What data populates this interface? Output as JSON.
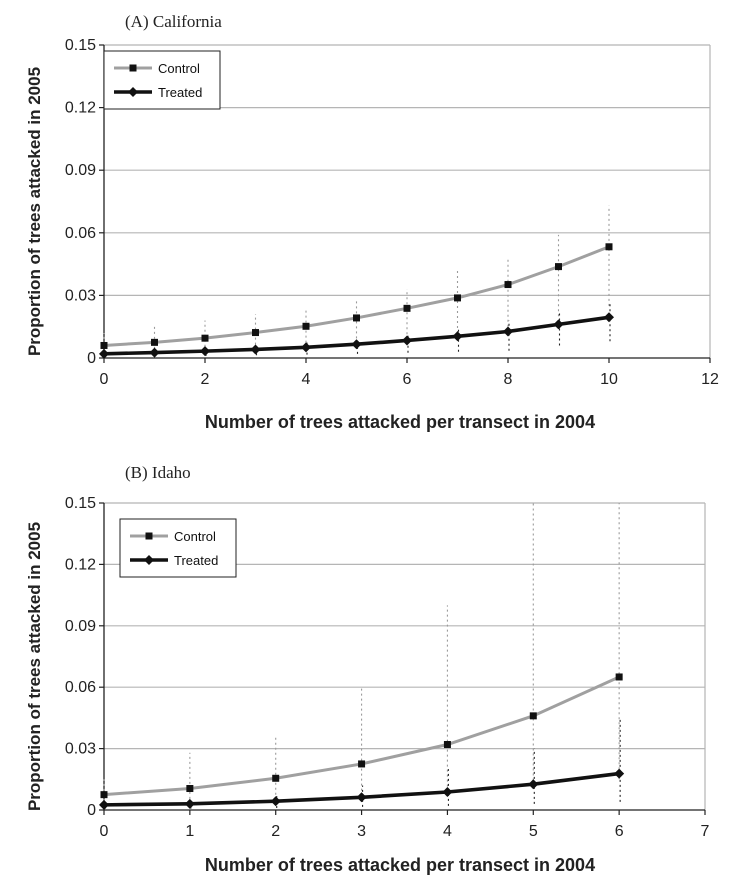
{
  "chart_data": [
    {
      "type": "line",
      "title": "(A) California",
      "xlabel": "Number of trees attacked per transect in 2004",
      "ylabel": "Proportion of  trees attacked in 2005",
      "xlim": [
        0,
        12
      ],
      "ylim": [
        0,
        0.15
      ],
      "xticks": [
        0,
        2,
        4,
        6,
        8,
        10,
        12
      ],
      "xtick_labels": [
        "0",
        "2",
        "4",
        "6",
        "8",
        "10",
        "12"
      ],
      "yticks": [
        0,
        0.03,
        0.06,
        0.09,
        0.12,
        0.15
      ],
      "ytick_labels": [
        "0",
        "0.03",
        "0.06",
        "0.09",
        "0.12",
        "0.15"
      ],
      "grid": "horizontal",
      "legend": "top-left",
      "x": [
        0,
        1,
        2,
        3,
        4,
        5,
        6,
        7,
        8,
        9,
        10
      ],
      "series": [
        {
          "name": "Control",
          "color": "#a0a0a0",
          "marker": "square",
          "values": [
            0.006,
            0.0075,
            0.0095,
            0.0122,
            0.0152,
            0.0192,
            0.0238,
            0.0288,
            0.0352,
            0.0438,
            0.0533
          ],
          "error_low": [
            0.002,
            0.002,
            0.003,
            0.004,
            0.005,
            0.007,
            0.009,
            0.012,
            0.015,
            0.02,
            0.025
          ],
          "error_high": [
            0.012,
            0.016,
            0.018,
            0.021,
            0.024,
            0.028,
            0.033,
            0.042,
            0.048,
            0.059,
            0.073
          ]
        },
        {
          "name": "Treated",
          "color": "#111111",
          "marker": "diamond",
          "values": [
            0.002,
            0.0026,
            0.0033,
            0.0041,
            0.0051,
            0.0066,
            0.0084,
            0.0104,
            0.0127,
            0.0161,
            0.0195
          ],
          "error_low": [
            0.0005,
            0.0007,
            0.001,
            0.0013,
            0.0016,
            0.002,
            0.0025,
            0.003,
            0.0035,
            0.006,
            0.008
          ],
          "error_high": [
            0.003,
            0.004,
            0.005,
            0.006,
            0.0075,
            0.009,
            0.012,
            0.015,
            0.018,
            0.022,
            0.026
          ]
        }
      ]
    },
    {
      "type": "line",
      "title": "(B) Idaho",
      "xlabel": "Number of trees attacked per transect in 2004",
      "ylabel": "Proportion of trees attacked in 2005",
      "xlim": [
        0,
        7
      ],
      "ylim": [
        0,
        0.15
      ],
      "xticks": [
        0,
        1,
        2,
        3,
        4,
        5,
        6,
        7
      ],
      "xtick_labels": [
        "0",
        "1",
        "2",
        "3",
        "4",
        "5",
        "6",
        "7"
      ],
      "yticks": [
        0,
        0.03,
        0.06,
        0.09,
        0.12,
        0.15
      ],
      "ytick_labels": [
        "0",
        "0.03",
        "0.06",
        "0.09",
        "0.12",
        "0.15"
      ],
      "grid": "horizontal",
      "legend": "top-left",
      "x": [
        0,
        1,
        2,
        3,
        4,
        5,
        6
      ],
      "series": [
        {
          "name": "Control",
          "color": "#a0a0a0",
          "marker": "square",
          "values": [
            0.0075,
            0.0105,
            0.0155,
            0.0225,
            0.032,
            0.046,
            0.065
          ],
          "error_low": [
            0.002,
            0.003,
            0.005,
            0.007,
            0.009,
            0.012,
            0.015
          ],
          "error_high": [
            0.015,
            0.028,
            0.036,
            0.06,
            0.1,
            0.15,
            0.15
          ]
        },
        {
          "name": "Treated",
          "color": "#111111",
          "marker": "diamond",
          "values": [
            0.0025,
            0.003,
            0.0043,
            0.0062,
            0.0088,
            0.0126,
            0.0178
          ],
          "error_low": [
            0.0005,
            0.0007,
            0.001,
            0.0015,
            0.002,
            0.003,
            0.004
          ],
          "error_high": [
            0.004,
            0.005,
            0.007,
            0.012,
            0.02,
            0.03,
            0.045
          ]
        }
      ]
    }
  ]
}
